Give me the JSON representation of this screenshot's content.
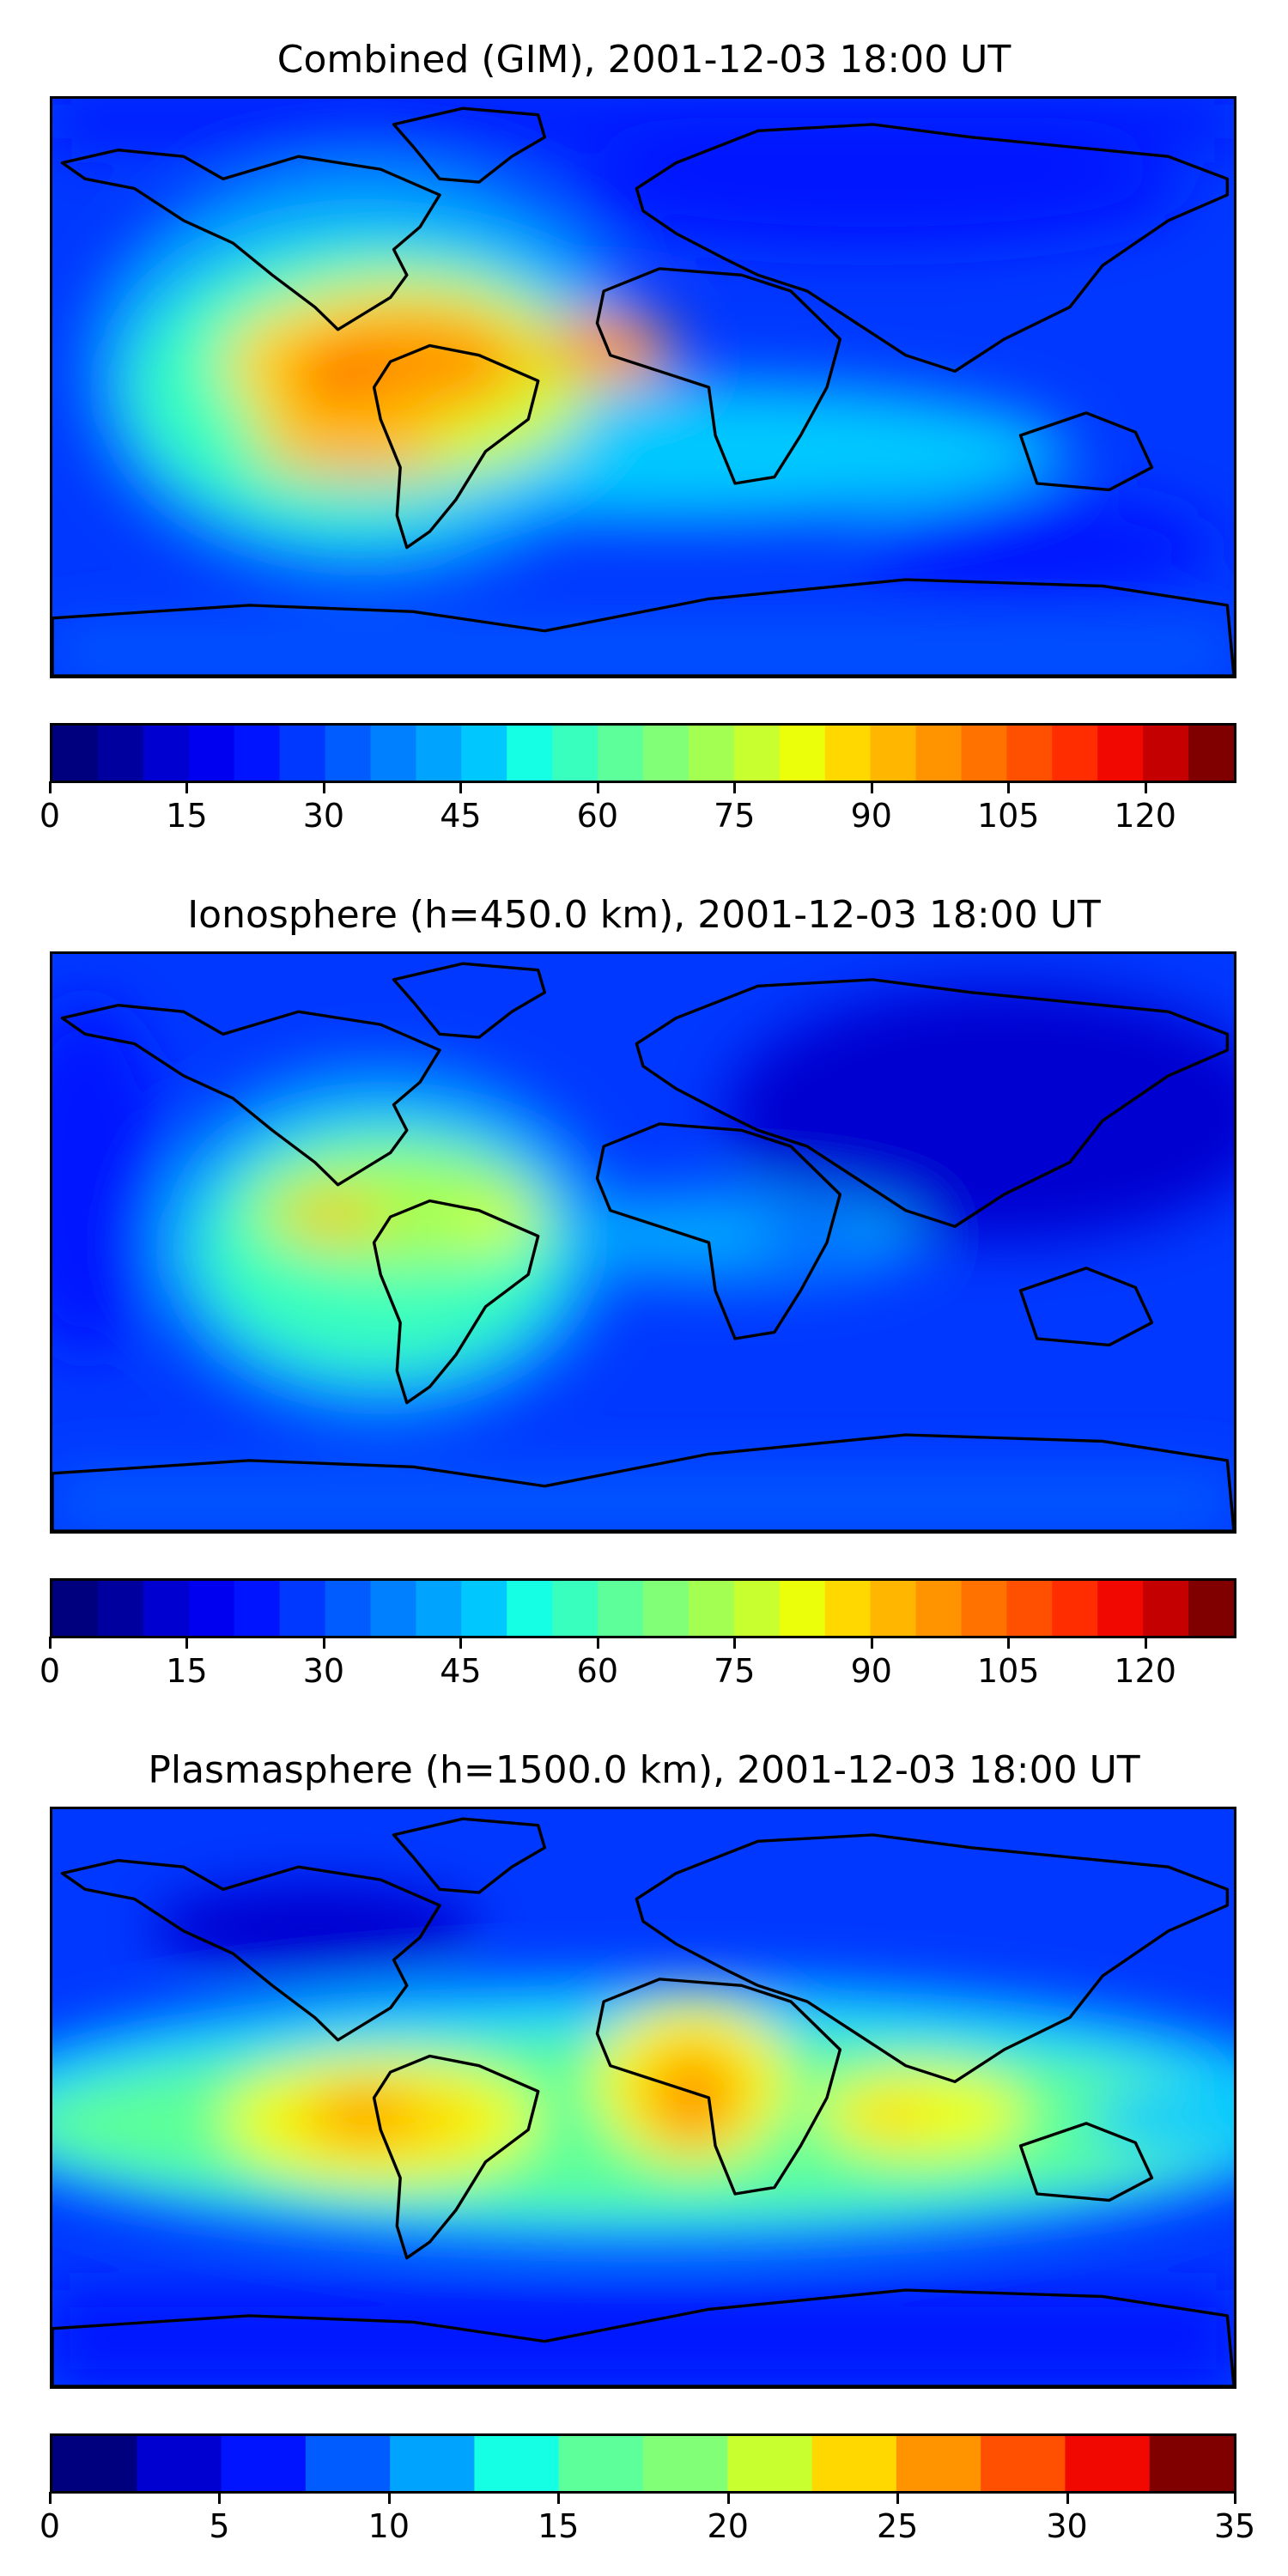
{
  "palette": [
    "#00007f",
    "#00009f",
    "#0000d0",
    "#0000f1",
    "#0014ff",
    "#0038ff",
    "#005cff",
    "#0080ff",
    "#00a4ff",
    "#00c8ff",
    "#14ffe3",
    "#38ffbe",
    "#5cff9a",
    "#80ff77",
    "#a4ff53",
    "#c8ff2f",
    "#ebff0b",
    "#ffd800",
    "#ffb600",
    "#ff9400",
    "#ff7200",
    "#ff4f00",
    "#ff2d00",
    "#f10800",
    "#c40000",
    "#800000"
  ],
  "panels": [
    {
      "title": "Combined (GIM), 2001-12-03 18:00 UT",
      "colorbar": {
        "min": 0,
        "max": 130,
        "step": 5,
        "ticks": [
          "0",
          "15",
          "30",
          "45",
          "60",
          "75",
          "90",
          "105",
          "120"
        ]
      }
    },
    {
      "title": "Ionosphere  (h=450.0 km), 2001-12-03 18:00 UT",
      "colorbar": {
        "min": 0,
        "max": 130,
        "step": 5,
        "ticks": [
          "0",
          "15",
          "30",
          "45",
          "60",
          "75",
          "90",
          "105",
          "120"
        ]
      }
    },
    {
      "title": "Plasmasphere (h=1500.0 km), 2001-12-03 18:00 UT",
      "colorbar": {
        "min": 0,
        "max": 35,
        "step": 2.5,
        "ticks": [
          "0",
          "5",
          "10",
          "15",
          "20",
          "25",
          "30",
          "35"
        ]
      }
    }
  ]
}
